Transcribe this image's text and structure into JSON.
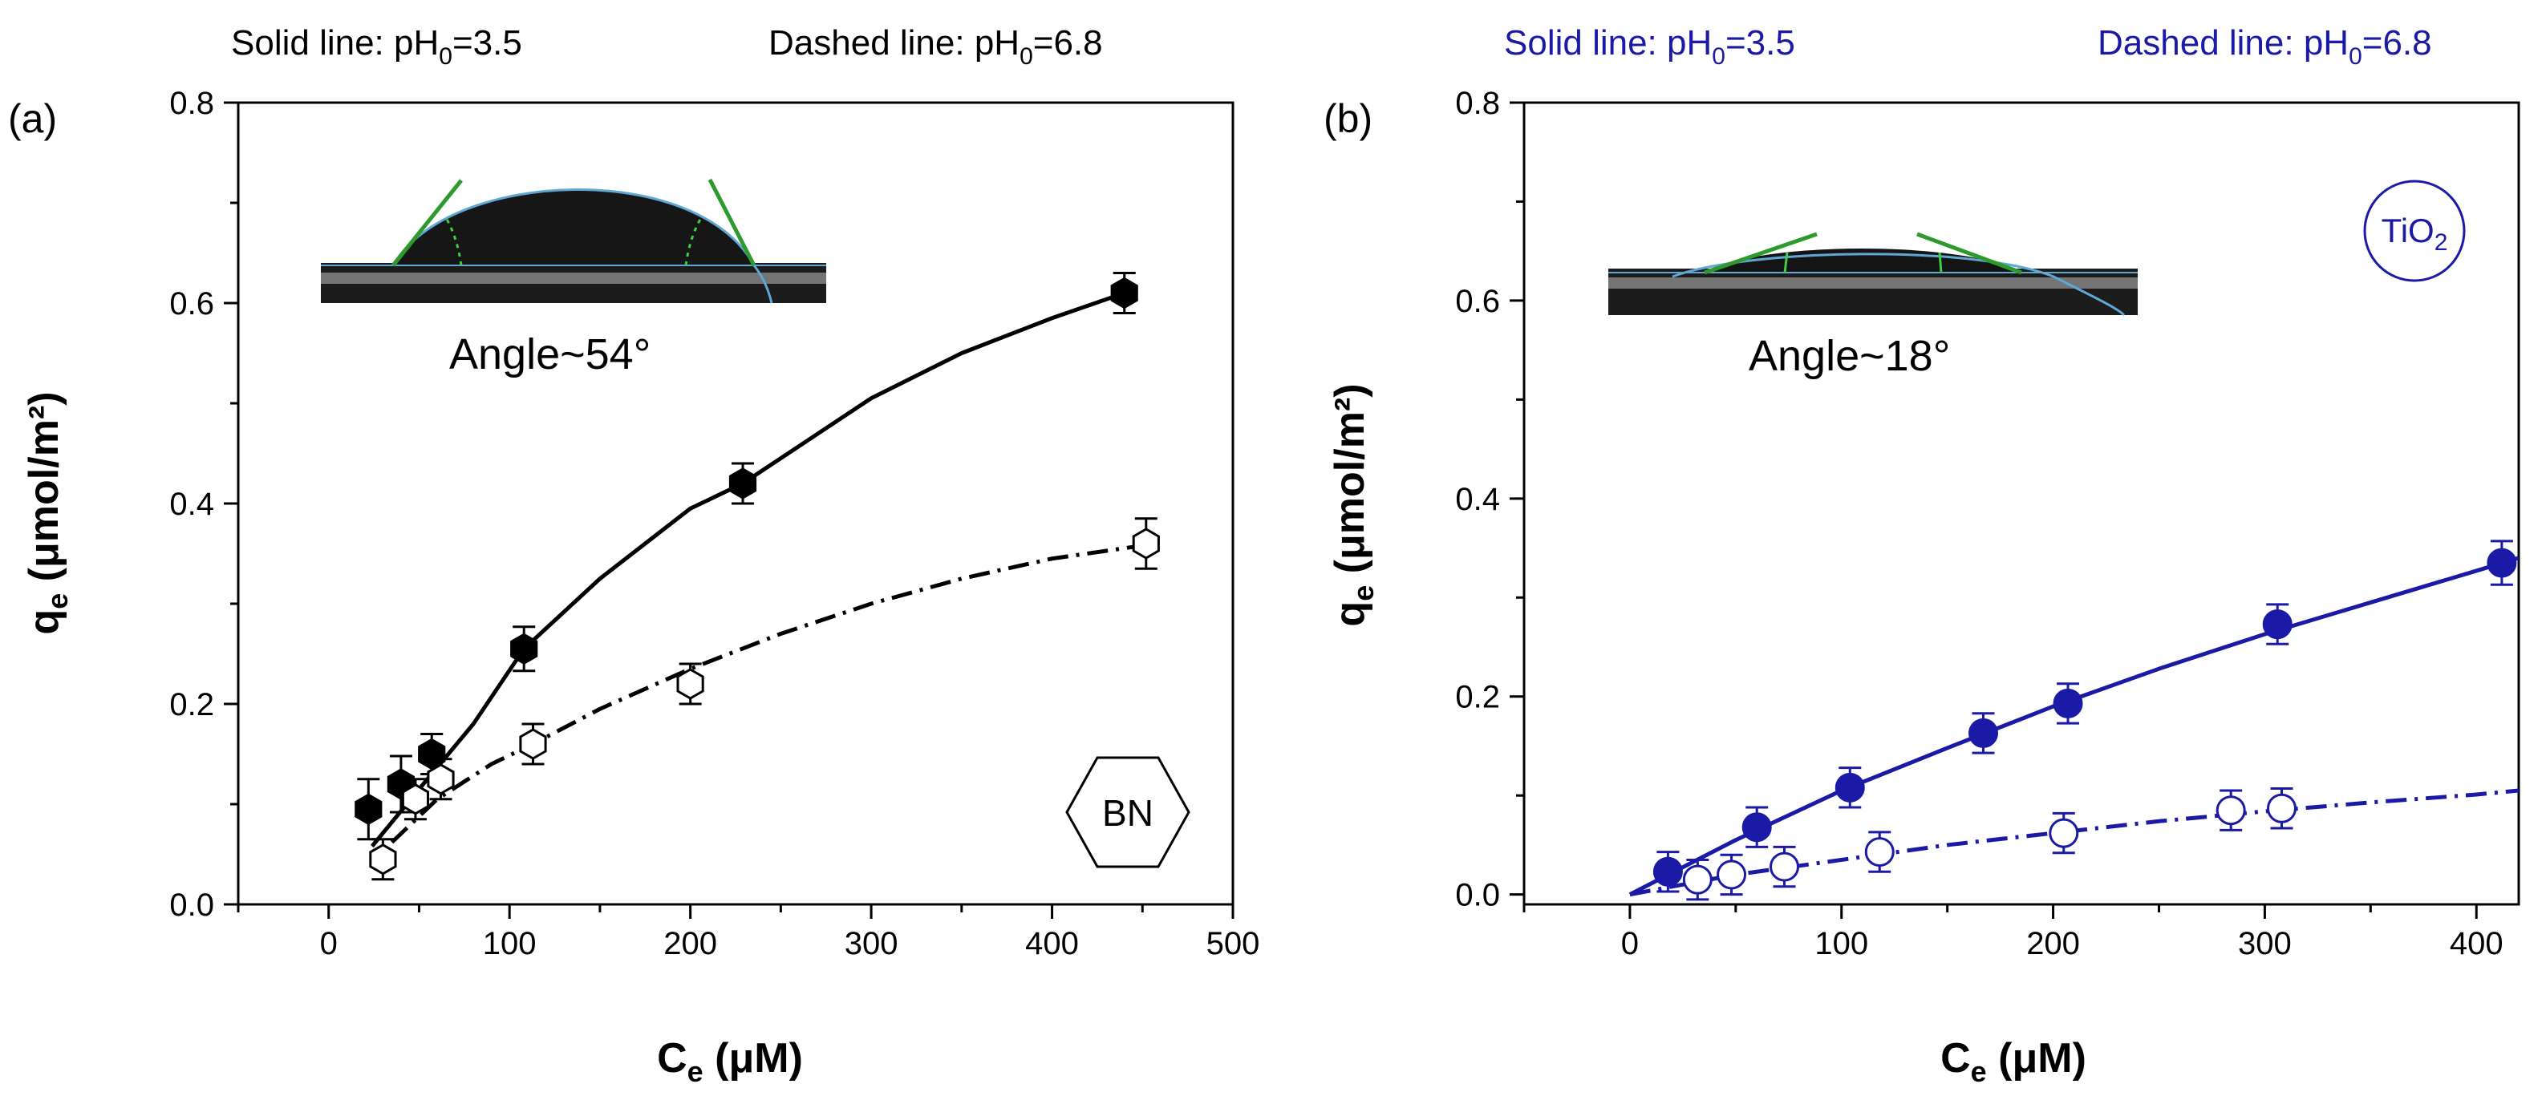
{
  "panels": [
    {
      "label": "(a)",
      "header_left_prefix": "Solid line: pH",
      "header_left_sub": "0",
      "header_left_suffix": "=3.5",
      "header_right_prefix": "Dashed line: pH",
      "header_right_sub": "0",
      "header_right_suffix": "=6.8",
      "inset_caption": "Angle~54°",
      "material_badge": "BN",
      "xlabel_main": "C",
      "xlabel_sub": "e",
      "xlabel_unit": " (μM)",
      "ylabel_main": "q",
      "ylabel_sub": "e",
      "ylabel_unit": " (μmol/m²)",
      "color": "#000000"
    },
    {
      "label": "(b)",
      "header_left_prefix": "Solid line: pH",
      "header_left_sub": "0",
      "header_left_suffix": "=3.5",
      "header_right_prefix": "Dashed line: pH",
      "header_right_sub": "0",
      "header_right_suffix": "=6.8",
      "inset_caption": "Angle~18°",
      "material_badge_main": "TiO",
      "material_badge_sub": "2",
      "xlabel_main": "C",
      "xlabel_sub": "e",
      "xlabel_unit": " (μM)",
      "ylabel_main": "q",
      "ylabel_sub": "e",
      "ylabel_unit": " (μmol/m²)",
      "color": "#1a1aa6"
    }
  ],
  "chart_data": [
    {
      "type": "scatter",
      "panel": "(a)",
      "xlim": [
        -50,
        500
      ],
      "ylim": [
        0,
        0.8
      ],
      "xticks": [
        0,
        100,
        200,
        300,
        400,
        500
      ],
      "yticks": [
        0.0,
        0.2,
        0.4,
        0.6,
        0.8
      ],
      "xtick_labels": [
        "0",
        "100",
        "200",
        "300",
        "400",
        "500"
      ],
      "ytick_labels": [
        "0.0",
        "0.2",
        "0.4",
        "0.6",
        "0.8"
      ],
      "series": [
        {
          "name": "Solid line: pH0=3.5",
          "marker": "filled-hexagon",
          "x": [
            22,
            40,
            57,
            108,
            229,
            440
          ],
          "y": [
            0.095,
            0.12,
            0.15,
            0.255,
            0.42,
            0.61
          ],
          "yerr": [
            0.03,
            0.028,
            0.02,
            0.022,
            0.02,
            0.02
          ],
          "fit": {
            "style": "solid",
            "x": [
              24,
              50,
              80,
              108,
              150,
              200,
              229,
              300,
              350,
              400,
              440
            ],
            "y": [
              0.058,
              0.115,
              0.18,
              0.255,
              0.325,
              0.395,
              0.42,
              0.505,
              0.55,
              0.585,
              0.61
            ]
          }
        },
        {
          "name": "Dashed line: pH0=6.8",
          "marker": "open-hexagon",
          "x": [
            30,
            48,
            62,
            113,
            200,
            452
          ],
          "y": [
            0.045,
            0.105,
            0.125,
            0.16,
            0.22,
            0.36
          ],
          "yerr": [
            0.02,
            0.02,
            0.02,
            0.02,
            0.02,
            0.025
          ],
          "fit": {
            "style": "dash-dot",
            "x": [
              35,
              60,
              90,
              113,
              150,
              200,
              250,
              300,
              350,
              400,
              450
            ],
            "y": [
              0.062,
              0.105,
              0.14,
              0.16,
              0.195,
              0.235,
              0.27,
              0.3,
              0.325,
              0.345,
              0.358
            ]
          }
        }
      ]
    },
    {
      "type": "scatter",
      "panel": "(b)",
      "xlim": [
        -50,
        420
      ],
      "ylim": [
        -0.01,
        0.8
      ],
      "xticks": [
        0,
        100,
        200,
        300,
        400
      ],
      "yticks": [
        0.0,
        0.2,
        0.4,
        0.6,
        0.8
      ],
      "xtick_labels": [
        "0",
        "100",
        "200",
        "300",
        "400"
      ],
      "ytick_labels": [
        "0.0",
        "0.2",
        "0.4",
        "0.6",
        "0.8"
      ],
      "series": [
        {
          "name": "Solid line: pH0=3.5",
          "marker": "filled-circle",
          "x": [
            18,
            60,
            104,
            167,
            207,
            306,
            412
          ],
          "y": [
            0.023,
            0.068,
            0.108,
            0.163,
            0.193,
            0.273,
            0.335
          ],
          "yerr": [
            0.02,
            0.02,
            0.02,
            0.02,
            0.02,
            0.02,
            0.022
          ],
          "fit": {
            "style": "solid",
            "x": [
              0,
              50,
              100,
              150,
              200,
              250,
              300,
              350,
              400,
              420
            ],
            "y": [
              0.0,
              0.055,
              0.105,
              0.148,
              0.19,
              0.228,
              0.263,
              0.295,
              0.327,
              0.34
            ]
          }
        },
        {
          "name": "Dashed line: pH0=6.8",
          "marker": "open-circle",
          "x": [
            32,
            48,
            73,
            118,
            205,
            284,
            308
          ],
          "y": [
            0.015,
            0.02,
            0.028,
            0.043,
            0.062,
            0.085,
            0.087
          ],
          "yerr": [
            0.02,
            0.02,
            0.02,
            0.02,
            0.02,
            0.02,
            0.02
          ],
          "fit": {
            "style": "dash-dot",
            "x": [
              0,
              50,
              100,
              150,
              200,
              250,
              300,
              350,
              400,
              420
            ],
            "y": [
              0.0,
              0.02,
              0.035,
              0.05,
              0.062,
              0.074,
              0.084,
              0.093,
              0.101,
              0.105
            ]
          }
        }
      ]
    }
  ]
}
